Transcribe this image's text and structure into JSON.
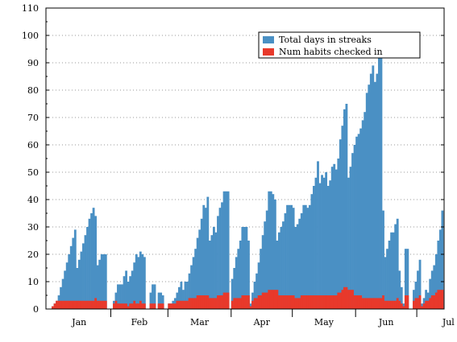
{
  "chart_data": {
    "type": "bar",
    "title": "",
    "xlabel": "",
    "ylabel": "",
    "ylim": [
      0,
      110
    ],
    "yticks": [
      0,
      10,
      20,
      30,
      40,
      50,
      60,
      70,
      80,
      90,
      100,
      110
    ],
    "grid": "horizontal dotted",
    "legend_position": "top-right",
    "month_labels": [
      "Jan",
      "Feb",
      "Mar",
      "Apr",
      "May",
      "Jun",
      "Jul"
    ],
    "month_days": [
      31,
      28,
      31,
      30,
      31,
      30,
      31
    ],
    "series": [
      {
        "name": "Total days in streaks",
        "color": "#4a90c4",
        "values": [
          0,
          0,
          1,
          2,
          3,
          5,
          8,
          11,
          14,
          17,
          20,
          23,
          26,
          29,
          15,
          18,
          21,
          24,
          27,
          30,
          33,
          35,
          37,
          34,
          16,
          18,
          20,
          20,
          20,
          0,
          0,
          0,
          3,
          6,
          9,
          9,
          9,
          12,
          14,
          10,
          12,
          14,
          17,
          20,
          19,
          21,
          20,
          19,
          0,
          0,
          6,
          9,
          9,
          0,
          6,
          6,
          5,
          0,
          0,
          2,
          2,
          3,
          4,
          6,
          8,
          10,
          7,
          10,
          10,
          13,
          16,
          19,
          22,
          26,
          29,
          33,
          38,
          37,
          41,
          25,
          27,
          30,
          28,
          34,
          37,
          39,
          43,
          43,
          43,
          0,
          11,
          15,
          19,
          22,
          25,
          30,
          30,
          30,
          25,
          2,
          6,
          10,
          13,
          17,
          22,
          27,
          32,
          36,
          43,
          43,
          42,
          40,
          25,
          28,
          30,
          32,
          35,
          38,
          38,
          38,
          37,
          30,
          31,
          33,
          35,
          38,
          38,
          37,
          38,
          42,
          45,
          48,
          54,
          46,
          49,
          48,
          50,
          45,
          47,
          52,
          53,
          51,
          55,
          62,
          67,
          73,
          75,
          48,
          52,
          57,
          60,
          63,
          64,
          66,
          69,
          72,
          79,
          82,
          86,
          89,
          83,
          86,
          93,
          96,
          36,
          19,
          22,
          25,
          28,
          28,
          31,
          33,
          14,
          8,
          2,
          22,
          22,
          0,
          0,
          7,
          10,
          14,
          18,
          2,
          4,
          7,
          6,
          11,
          14,
          16,
          20,
          25,
          29,
          36
        ]
      },
      {
        "name": "Num habits checked in",
        "color": "#e8392b",
        "values": [
          0,
          0,
          1,
          2,
          3,
          3,
          3,
          3,
          3,
          3,
          3,
          3,
          3,
          3,
          3,
          3,
          3,
          3,
          3,
          3,
          3,
          3,
          3,
          4,
          3,
          3,
          3,
          3,
          3,
          0,
          0,
          0,
          2,
          3,
          2,
          2,
          2,
          2,
          2,
          1,
          2,
          2,
          3,
          2,
          2,
          3,
          2,
          2,
          0,
          0,
          2,
          2,
          2,
          0,
          2,
          2,
          2,
          0,
          0,
          2,
          2,
          2,
          2,
          3,
          3,
          3,
          3,
          3,
          3,
          4,
          4,
          4,
          4,
          5,
          5,
          5,
          5,
          5,
          5,
          4,
          4,
          4,
          4,
          5,
          5,
          5,
          6,
          6,
          6,
          0,
          3,
          4,
          4,
          4,
          4,
          5,
          5,
          5,
          5,
          1,
          3,
          4,
          4,
          5,
          5,
          6,
          6,
          6,
          7,
          7,
          7,
          7,
          7,
          5,
          5,
          5,
          5,
          5,
          5,
          5,
          5,
          4,
          4,
          4,
          5,
          5,
          5,
          5,
          5,
          5,
          5,
          5,
          5,
          5,
          5,
          5,
          5,
          5,
          5,
          5,
          5,
          5,
          6,
          6,
          7,
          8,
          8,
          7,
          7,
          7,
          5,
          5,
          5,
          5,
          4,
          4,
          4,
          4,
          4,
          4,
          4,
          4,
          4,
          4,
          5,
          3,
          3,
          3,
          3,
          3,
          3,
          4,
          3,
          2,
          1,
          5,
          5,
          0,
          0,
          3,
          4,
          4,
          5,
          1,
          2,
          3,
          3,
          4,
          5,
          5,
          6,
          7,
          7,
          7
        ]
      }
    ]
  }
}
